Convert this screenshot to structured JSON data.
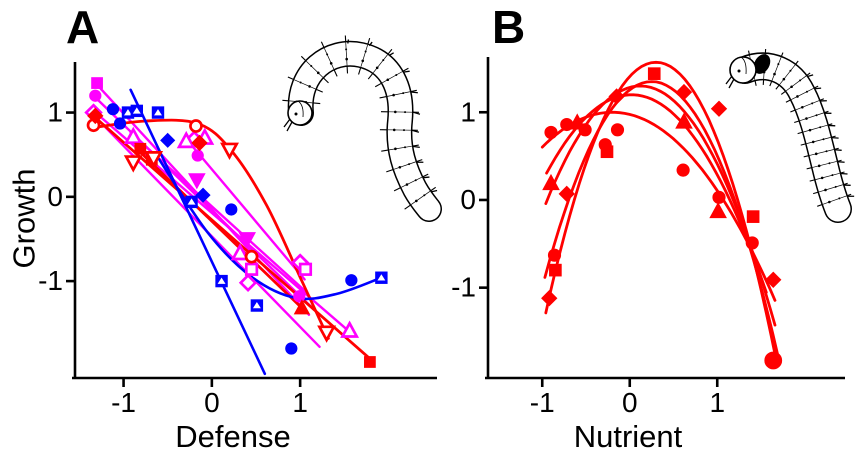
{
  "figure": {
    "background": "#FFFFFF",
    "colors": {
      "red": "#FF0000",
      "magenta": "#FF00FF",
      "blue": "#0000FF",
      "axis": "#000000"
    }
  },
  "chart_data": [
    {
      "panel_label": "A",
      "type": "scatter",
      "xlabel": "Defense",
      "ylabel": "Growth",
      "xticks": [
        -1,
        0,
        1
      ],
      "yticks": [
        1,
        0,
        -1
      ],
      "xlim": [
        -1.55,
        2.55
      ],
      "ylim": [
        -2.15,
        1.6
      ],
      "grid": false,
      "legend": null,
      "illustration": "caterpillar-line-drawing",
      "series": [
        {
          "name": "magenta-filled-square",
          "color": "magenta",
          "marker": "square",
          "filled": true,
          "size": 6,
          "points": [
            [
              -1.3,
              1.35
            ]
          ]
        },
        {
          "name": "magenta-filled-circle",
          "color": "magenta",
          "marker": "circle",
          "filled": true,
          "size": 6,
          "points": [
            [
              -1.32,
              1.2
            ],
            [
              -0.16,
              0.49
            ],
            [
              0.99,
              -1.18
            ]
          ]
        },
        {
          "name": "magenta-filled-triangle-down",
          "color": "magenta",
          "marker": "triangle-down",
          "filled": true,
          "size": 6.5,
          "points": [
            [
              -0.17,
              0.2
            ],
            [
              0.4,
              -0.5
            ]
          ]
        },
        {
          "name": "magenta-open-diamond",
          "color": "magenta",
          "marker": "diamond",
          "filled": false,
          "size": 6,
          "points": [
            [
              -1.34,
              1.0
            ],
            [
              -0.2,
              0.68
            ],
            [
              0.41,
              -1.02
            ],
            [
              1.0,
              -0.78
            ]
          ]
        },
        {
          "name": "magenta-open-triangle-up",
          "color": "magenta",
          "marker": "triangle-up",
          "filled": false,
          "size": 6,
          "points": [
            [
              -0.89,
              0.71
            ],
            [
              -0.29,
              0.66
            ],
            [
              -0.08,
              0.7
            ],
            [
              0.32,
              -0.67
            ],
            [
              1.56,
              -1.59
            ]
          ]
        },
        {
          "name": "magenta-open-square",
          "color": "magenta",
          "marker": "square",
          "filled": false,
          "size": 6,
          "points": [
            [
              0.45,
              -0.86
            ],
            [
              1.06,
              -0.86
            ]
          ]
        },
        {
          "name": "red-open-circle",
          "color": "red",
          "marker": "circle",
          "filled": false,
          "size": 6,
          "points": [
            [
              -1.34,
              0.85
            ],
            [
              -0.18,
              0.84
            ],
            [
              0.45,
              -0.71
            ]
          ]
        },
        {
          "name": "red-filled-diamond",
          "color": "red",
          "marker": "diamond",
          "filled": true,
          "size": 6,
          "points": [
            [
              -1.32,
              0.96
            ],
            [
              -0.14,
              0.64
            ]
          ]
        },
        {
          "name": "red-filled-square",
          "color": "red",
          "marker": "square",
          "filled": true,
          "size": 6,
          "points": [
            [
              -0.81,
              0.57
            ],
            [
              -0.68,
              0.44
            ],
            [
              1.79,
              -1.96
            ]
          ]
        },
        {
          "name": "red-open-triangle-down",
          "color": "red",
          "marker": "triangle-down",
          "filled": false,
          "size": 6,
          "points": [
            [
              -0.89,
              0.41
            ],
            [
              -0.66,
              0.46
            ],
            [
              0.2,
              0.56
            ],
            [
              1.3,
              -1.61
            ]
          ]
        },
        {
          "name": "red-filled-triangle-up",
          "color": "red",
          "marker": "triangle-up",
          "filled": true,
          "size": 6,
          "points": [
            [
              1.02,
              -1.32
            ]
          ]
        },
        {
          "name": "blue-square-with-triangle",
          "color": "blue",
          "marker": "square-triangle",
          "filled": true,
          "size": 6,
          "points": [
            [
              -0.95,
              1.0
            ],
            [
              -0.85,
              1.02
            ],
            [
              -0.61,
              1.0
            ],
            [
              -0.23,
              -0.06
            ],
            [
              0.11,
              -1.0
            ],
            [
              0.51,
              -1.29
            ],
            [
              1.92,
              -0.96
            ]
          ]
        },
        {
          "name": "blue-filled-circle",
          "color": "blue",
          "marker": "circle",
          "filled": true,
          "size": 6,
          "points": [
            [
              -1.12,
              1.04
            ],
            [
              -1.04,
              0.87
            ],
            [
              0.22,
              -0.15
            ],
            [
              0.9,
              -1.8
            ],
            [
              1.58,
              -0.99
            ]
          ]
        },
        {
          "name": "blue-filled-diamond",
          "color": "blue",
          "marker": "diamond",
          "filled": true,
          "size": 5.5,
          "points": [
            [
              -0.5,
              0.67
            ],
            [
              -0.1,
              0.02
            ]
          ]
        }
      ],
      "curves": [
        {
          "name": "magenta-fit-1",
          "color": "magenta",
          "type": "line",
          "width": 2.4,
          "points": [
            [
              -1.3,
              1.33
            ],
            [
              1.1,
              -1.4
            ]
          ]
        },
        {
          "name": "magenta-fit-2",
          "color": "magenta",
          "type": "line",
          "width": 2.4,
          "points": [
            [
              -1.32,
              1.18
            ],
            [
              1.12,
              -1.3
            ]
          ]
        },
        {
          "name": "magenta-fit-3",
          "color": "magenta",
          "type": "line",
          "width": 2.4,
          "points": [
            [
              -1.34,
              1.02
            ],
            [
              1.58,
              -1.62
            ]
          ]
        },
        {
          "name": "magenta-fit-4",
          "color": "magenta",
          "type": "line",
          "width": 2.4,
          "points": [
            [
              -1.34,
              0.97
            ],
            [
              1.22,
              -1.78
            ]
          ]
        },
        {
          "name": "magenta-fit-5",
          "color": "magenta",
          "type": "line",
          "width": 2.4,
          "points": [
            [
              -0.92,
              0.76
            ],
            [
              1.06,
              -1.12
            ]
          ]
        },
        {
          "name": "magenta-fit-6",
          "color": "magenta",
          "type": "line",
          "width": 2.4,
          "points": [
            [
              -0.3,
              0.7
            ],
            [
              1.05,
              -0.98
            ]
          ]
        },
        {
          "name": "red-fit-1",
          "color": "red",
          "type": "line",
          "width": 2.8,
          "points": [
            [
              -1.32,
              0.94
            ],
            [
              1.8,
              -1.93
            ]
          ]
        },
        {
          "name": "red-fit-2",
          "color": "red",
          "type": "line",
          "width": 2.8,
          "points": [
            [
              -0.86,
              0.58
            ],
            [
              1.04,
              -1.34
            ]
          ]
        },
        {
          "name": "red-fit-curve",
          "color": "red",
          "type": "smooth",
          "width": 2.8,
          "points": [
            [
              -1.35,
              0.82
            ],
            [
              -0.75,
              0.9
            ],
            [
              -0.16,
              0.87
            ],
            [
              0.22,
              0.55
            ],
            [
              0.62,
              -0.1
            ],
            [
              1.02,
              -1.0
            ],
            [
              1.32,
              -1.68
            ]
          ]
        },
        {
          "name": "blue-fit-line",
          "color": "blue",
          "type": "line",
          "width": 2.6,
          "points": [
            [
              -0.92,
              1.27
            ],
            [
              0.6,
              -2.1
            ]
          ]
        },
        {
          "name": "blue-fit-curve",
          "color": "blue",
          "type": "smooth",
          "width": 2.6,
          "points": [
            [
              -0.6,
              0.45
            ],
            [
              -0.05,
              -0.42
            ],
            [
              0.45,
              -0.95
            ],
            [
              0.95,
              -1.2
            ],
            [
              1.42,
              -1.15
            ],
            [
              1.92,
              -0.96
            ]
          ]
        }
      ]
    },
    {
      "panel_label": "B",
      "type": "scatter",
      "xlabel": "Nutrient",
      "ylabel": "",
      "xticks": [
        -1,
        0,
        1
      ],
      "yticks": [
        1,
        0,
        -1
      ],
      "xlim": [
        -1.62,
        2.46
      ],
      "ylim": [
        -2.03,
        1.63
      ],
      "grid": false,
      "legend": null,
      "illustration": "caterpillar-line-drawing",
      "series": [
        {
          "name": "red-filled-circle",
          "color": "red",
          "marker": "circle",
          "filled": true,
          "size": 6.5,
          "points": [
            [
              -0.9,
              0.77
            ],
            [
              -0.72,
              0.86
            ],
            [
              -0.51,
              0.8
            ],
            [
              -0.28,
              0.63
            ],
            [
              -0.14,
              0.8
            ],
            [
              0.61,
              0.34
            ],
            [
              1.02,
              0.03
            ],
            [
              1.4,
              -0.49
            ],
            [
              -0.86,
              -0.63
            ]
          ]
        },
        {
          "name": "red-filled-circle-large",
          "color": "red",
          "marker": "circle",
          "filled": true,
          "size": 9,
          "points": [
            [
              1.64,
              -1.83
            ]
          ]
        },
        {
          "name": "red-filled-square",
          "color": "red",
          "marker": "square",
          "filled": true,
          "size": 6.5,
          "points": [
            [
              0.28,
              1.44
            ],
            [
              -0.26,
              0.55
            ],
            [
              -0.85,
              -0.8
            ],
            [
              1.41,
              -0.19
            ]
          ]
        },
        {
          "name": "red-filled-diamond",
          "color": "red",
          "marker": "diamond",
          "filled": true,
          "size": 6,
          "points": [
            [
              -0.15,
              1.18
            ],
            [
              0.62,
              1.23
            ],
            [
              1.02,
              1.04
            ],
            [
              -0.72,
              0.07
            ],
            [
              -0.92,
              -1.12
            ],
            [
              1.64,
              -0.91
            ]
          ]
        },
        {
          "name": "red-filled-triangle-up",
          "color": "red",
          "marker": "triangle-up",
          "filled": true,
          "size": 6.5,
          "points": [
            [
              -0.6,
              0.88
            ],
            [
              0.62,
              0.89
            ],
            [
              -0.9,
              0.19
            ],
            [
              1.01,
              -0.13
            ]
          ]
        }
      ],
      "curves": [
        {
          "name": "red-parabola-1",
          "color": "red",
          "type": "quad",
          "width": 2.8,
          "peak": [
            0.3,
            1.57
          ],
          "a": 1.8,
          "xrange": [
            -0.96,
            1.67
          ]
        },
        {
          "name": "red-parabola-2",
          "color": "red",
          "type": "quad",
          "width": 2.8,
          "peak": [
            0.25,
            1.35
          ],
          "a": 1.5,
          "xrange": [
            -0.97,
            1.69
          ]
        },
        {
          "name": "red-parabola-3",
          "color": "red",
          "type": "quad",
          "width": 2.8,
          "peak": [
            0.12,
            1.3
          ],
          "a": 1.15,
          "xrange": [
            -0.96,
            1.66
          ]
        },
        {
          "name": "red-parabola-4",
          "color": "red",
          "type": "quad",
          "width": 2.8,
          "peak": [
            0.02,
            1.2
          ],
          "a": 0.95,
          "xrange": [
            -0.95,
            1.56
          ]
        },
        {
          "name": "red-parabola-5",
          "color": "red",
          "type": "quad",
          "width": 2.8,
          "peak": [
            -0.2,
            1.0
          ],
          "a": 0.62,
          "xrange": [
            -1.0,
            1.66
          ]
        }
      ]
    }
  ]
}
